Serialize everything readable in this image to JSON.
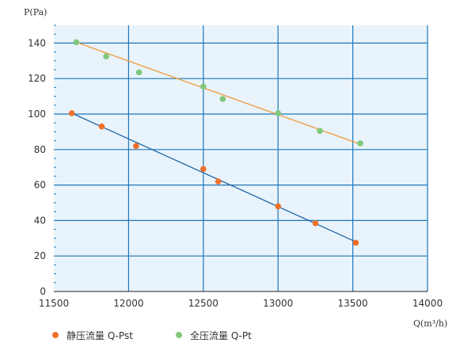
{
  "chart_data": {
    "type": "scatter",
    "ylabel": "P(Pa)",
    "xlabel": "Q(m³/h)",
    "xlim": [
      11500,
      14000
    ],
    "ylim": [
      0,
      150
    ],
    "x_ticks": [
      11500,
      12000,
      12500,
      13000,
      13500,
      14000
    ],
    "y_ticks": [
      0,
      20,
      40,
      60,
      80,
      100,
      120,
      140
    ],
    "x_tick_labels": [
      "11500",
      "12000",
      "12500",
      "13000",
      "13500",
      "14000"
    ],
    "y_tick_labels": [
      "0",
      "20",
      "40",
      "60",
      "80",
      "100",
      "120",
      "140"
    ],
    "grid": true,
    "plot_background": "#e8f3fb",
    "grid_color": "#1f78b9",
    "legend_position": "bottom-left",
    "series": [
      {
        "name": "静压流量  Q-Pst",
        "color": "#f07028",
        "line_color": "#1f62a8",
        "x": [
          11620,
          11820,
          12050,
          12500,
          12600,
          13000,
          13250,
          13520
        ],
        "y": [
          100.5,
          93,
          82,
          69,
          62,
          48,
          38.5,
          27.5
        ],
        "trend": [
          [
            11620,
            100.5
          ],
          [
            13520,
            28
          ]
        ]
      },
      {
        "name": "全压流量  Q-Pt",
        "color": "#80c87c",
        "line_color": "#f09a3a",
        "x": [
          11650,
          11850,
          12070,
          12500,
          12630,
          13000,
          13280,
          13550
        ],
        "y": [
          140.5,
          132.5,
          123.5,
          115.5,
          108.5,
          100.5,
          90.5,
          83.5
        ],
        "trend": [
          [
            11650,
            140.5
          ],
          [
            13550,
            83
          ]
        ]
      }
    ]
  }
}
